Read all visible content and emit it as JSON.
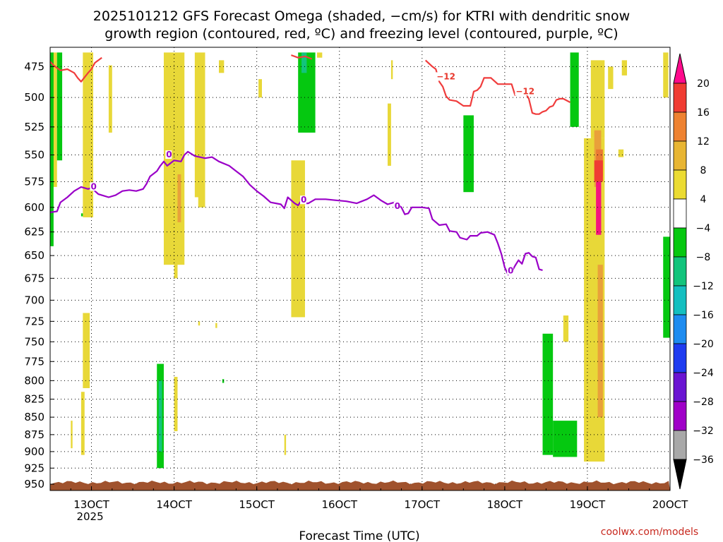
{
  "chart_data": {
    "type": "heatmap",
    "title": "2025101212 GFS Forecast Omega (shaded, −cm/s) for KTRI with dendritic snow",
    "subtitle": "growth region (contoured, red, ºC) and freezing level (contoured, purple, ºC)",
    "xlabel": "Forecast Time (UTC)",
    "ylabel": "",
    "credit": "coolwx.com/models",
    "x_axis": {
      "ticks": [
        {
          "value": 0,
          "label": "13OCT",
          "sub": "2025"
        },
        {
          "value": 24,
          "label": "14OCT",
          "sub": ""
        },
        {
          "value": 48,
          "label": "15OCT",
          "sub": ""
        },
        {
          "value": 72,
          "label": "16OCT",
          "sub": ""
        },
        {
          "value": 96,
          "label": "17OCT",
          "sub": ""
        },
        {
          "value": 120,
          "label": "18OCT",
          "sub": ""
        },
        {
          "value": 144,
          "label": "19OCT",
          "sub": ""
        },
        {
          "value": 168,
          "label": "20OCT",
          "sub": ""
        }
      ],
      "range_hours": [
        -12,
        168
      ],
      "units": "hours from 13OCT 00Z"
    },
    "y_axis": {
      "ticks": [
        475,
        500,
        525,
        550,
        575,
        600,
        625,
        650,
        675,
        700,
        725,
        750,
        775,
        800,
        825,
        850,
        875,
        900,
        925,
        950
      ],
      "range_hpa": [
        460,
        960
      ],
      "scale": "log-pressure, inverted"
    },
    "colorbar": {
      "labels": [
        "20",
        "16",
        "12",
        "8",
        "4",
        "−4",
        "−8",
        "−12",
        "−16",
        "−20",
        "−24",
        "−28",
        "−32",
        "−36"
      ],
      "colors": [
        "#ff0a8c",
        "#f03c32",
        "#ee8231",
        "#e8b533",
        "#ebdb32",
        "#ffffff",
        "#05c810",
        "#12c47c",
        "#14bfc0",
        "#1e8cf0",
        "#1e3cf0",
        "#6a14d2",
        "#a000c8",
        "#a8a8a8"
      ],
      "top_color": "#ff0a8c",
      "bottom_color": "#000000"
    },
    "freezing_level": {
      "label": "0",
      "color": "#9a00c8",
      "points": [
        [
          -12,
          605
        ],
        [
          -10,
          604
        ],
        [
          -9,
          595
        ],
        [
          -7,
          590
        ],
        [
          -5,
          584
        ],
        [
          -3,
          580
        ],
        [
          -1,
          582
        ],
        [
          0,
          581
        ],
        [
          1,
          584
        ],
        [
          2,
          587
        ],
        [
          3,
          588
        ],
        [
          5,
          590
        ],
        [
          7,
          588
        ],
        [
          9,
          584
        ],
        [
          11,
          583
        ],
        [
          13,
          584
        ],
        [
          15,
          582
        ],
        [
          16,
          577
        ],
        [
          17,
          570
        ],
        [
          19,
          565
        ],
        [
          20,
          560
        ],
        [
          21,
          556
        ],
        [
          22,
          560
        ],
        [
          24,
          555
        ],
        [
          26,
          556
        ],
        [
          27,
          550
        ],
        [
          28,
          547
        ],
        [
          30,
          551
        ],
        [
          33,
          553
        ],
        [
          35,
          552
        ],
        [
          37,
          556
        ],
        [
          40,
          560
        ],
        [
          42,
          565
        ],
        [
          44,
          570
        ],
        [
          46,
          578
        ],
        [
          48,
          584
        ],
        [
          50,
          589
        ],
        [
          52,
          595
        ],
        [
          55,
          597
        ],
        [
          56,
          601
        ],
        [
          57,
          590
        ],
        [
          58,
          593
        ],
        [
          59,
          596
        ],
        [
          60,
          598
        ],
        [
          61,
          593
        ],
        [
          62,
          596
        ],
        [
          63,
          596
        ],
        [
          65,
          592
        ],
        [
          68,
          592
        ],
        [
          71,
          593
        ],
        [
          74,
          594
        ],
        [
          77,
          596
        ],
        [
          80,
          592
        ],
        [
          82,
          588
        ],
        [
          84,
          593
        ],
        [
          86,
          597
        ],
        [
          88,
          595
        ],
        [
          90,
          600
        ],
        [
          91,
          607
        ],
        [
          92,
          606
        ],
        [
          93,
          600
        ],
        [
          96,
          600
        ],
        [
          98,
          601
        ],
        [
          99,
          612
        ],
        [
          101,
          618
        ],
        [
          103,
          617
        ],
        [
          104,
          624
        ],
        [
          106,
          625
        ],
        [
          107,
          631
        ],
        [
          109,
          633
        ],
        [
          110,
          629
        ],
        [
          112,
          629
        ],
        [
          113,
          626
        ],
        [
          115,
          625
        ],
        [
          117,
          628
        ],
        [
          118,
          637
        ],
        [
          119,
          648
        ],
        [
          120,
          663
        ],
        [
          121,
          671
        ],
        [
          122,
          668
        ],
        [
          123,
          661
        ],
        [
          124,
          655
        ],
        [
          125,
          659
        ],
        [
          126,
          648
        ],
        [
          127,
          647
        ],
        [
          128,
          651
        ],
        [
          129,
          652
        ],
        [
          130,
          665
        ],
        [
          131,
          666
        ]
      ]
    },
    "dgz_upper": {
      "label": "−12",
      "color": "#f03c3c",
      "points": [
        [
          -12,
          471
        ],
        [
          -11,
          474
        ],
        [
          -9,
          478
        ],
        [
          -7,
          477
        ],
        [
          -5,
          480
        ],
        [
          -4,
          484
        ],
        [
          -3,
          487
        ],
        [
          -1,
          480
        ],
        [
          0,
          477
        ],
        [
          1,
          472
        ],
        [
          2,
          470
        ],
        [
          3,
          468
        ]
      ]
    },
    "dgz_right": {
      "label": "−12",
      "color": "#f03c3c",
      "points": [
        [
          97,
          470
        ],
        [
          99,
          475
        ],
        [
          100,
          477
        ],
        [
          101,
          487
        ],
        [
          102,
          491
        ],
        [
          103,
          499
        ],
        [
          104,
          502
        ],
        [
          106,
          503
        ],
        [
          108,
          507
        ],
        [
          110,
          507
        ],
        [
          111,
          495
        ],
        [
          112,
          494
        ],
        [
          113,
          491
        ],
        [
          114,
          484
        ],
        [
          116,
          484
        ],
        [
          118,
          489
        ],
        [
          120,
          489
        ],
        [
          122,
          489
        ],
        [
          123,
          498
        ],
        [
          124,
          497
        ],
        [
          125,
          497
        ],
        [
          126,
          496
        ],
        [
          127,
          501
        ],
        [
          128,
          513
        ],
        [
          129,
          514
        ],
        [
          130,
          514
        ],
        [
          131,
          512
        ],
        [
          132,
          511
        ],
        [
          133,
          508
        ],
        [
          134,
          507
        ],
        [
          135,
          502
        ],
        [
          136,
          501
        ],
        [
          137,
          501
        ],
        [
          139,
          504
        ]
      ]
    },
    "dgz_top_fragment": {
      "color": "#f03c3c",
      "points": [
        [
          58,
          466
        ],
        [
          60,
          468
        ],
        [
          62,
          467
        ],
        [
          64,
          469
        ]
      ]
    },
    "shading": {
      "yellow": [
        {
          "x0": -11.5,
          "x1": -10,
          "p0": 464,
          "p1": 580
        },
        {
          "x0": -2.5,
          "x1": 0.5,
          "p0": 464,
          "p1": 610
        },
        {
          "x0": 5,
          "x1": 6,
          "p0": 474,
          "p1": 530
        },
        {
          "x0": 21,
          "x1": 27,
          "p0": 464,
          "p1": 660
        },
        {
          "x0": 24,
          "x1": 25,
          "p0": 640,
          "p1": 675
        },
        {
          "x0": 30,
          "x1": 33,
          "p0": 464,
          "p1": 590
        },
        {
          "x0": 31,
          "x1": 33,
          "p0": 540,
          "p1": 600
        },
        {
          "x0": 37,
          "x1": 38.5,
          "p0": 470,
          "p1": 480
        },
        {
          "x0": 48.5,
          "x1": 49.5,
          "p0": 485,
          "p1": 500
        },
        {
          "x0": 58,
          "x1": 62,
          "p0": 555,
          "p1": 720
        },
        {
          "x0": 65.5,
          "x1": 67,
          "p0": 464,
          "p1": 468
        },
        {
          "x0": 86,
          "x1": 87,
          "p0": 505,
          "p1": 560
        },
        {
          "x0": 87,
          "x1": 87.5,
          "p0": 470,
          "p1": 485
        },
        {
          "x0": -2.5,
          "x1": -0.5,
          "p0": 715,
          "p1": 810
        },
        {
          "x0": -3,
          "x1": -2,
          "p0": 815,
          "p1": 905
        },
        {
          "x0": -6,
          "x1": -5.5,
          "p0": 855,
          "p1": 895
        },
        {
          "x0": -2,
          "x1": -1.5,
          "p0": 738,
          "p1": 748
        },
        {
          "x0": 24,
          "x1": 25,
          "p0": 795,
          "p1": 870
        },
        {
          "x0": 31,
          "x1": 31.5,
          "p0": 725,
          "p1": 730
        },
        {
          "x0": 36,
          "x1": 36.5,
          "p0": 727,
          "p1": 733
        },
        {
          "x0": 56,
          "x1": 56.5,
          "p0": 875,
          "p1": 905
        },
        {
          "x0": 137,
          "x1": 138.5,
          "p0": 718,
          "p1": 750
        },
        {
          "x0": 143,
          "x1": 149,
          "p0": 535,
          "p1": 915
        },
        {
          "x0": 145,
          "x1": 149,
          "p0": 470,
          "p1": 535
        },
        {
          "x0": 150,
          "x1": 151.5,
          "p0": 475,
          "p1": 493
        },
        {
          "x0": 154,
          "x1": 155.5,
          "p0": 470,
          "p1": 482
        },
        {
          "x0": 153,
          "x1": 154.5,
          "p0": 545,
          "p1": 552
        },
        {
          "x0": 166,
          "x1": 167.5,
          "p0": 464,
          "p1": 500
        }
      ],
      "orange": [
        {
          "x0": 25,
          "x1": 26,
          "p0": 568,
          "p1": 615
        },
        {
          "x0": 146,
          "x1": 148,
          "p0": 528,
          "p1": 580
        },
        {
          "x0": 147,
          "x1": 148.5,
          "p0": 660,
          "p1": 850
        }
      ],
      "darkorange": [
        {
          "x0": 146.5,
          "x1": 148.5,
          "p0": 545,
          "p1": 570
        }
      ],
      "red": [
        {
          "x0": 146,
          "x1": 148.5,
          "p0": 555,
          "p1": 575
        }
      ],
      "magenta": [
        {
          "x0": 146.5,
          "x1": 148,
          "p0": 575,
          "p1": 628
        }
      ],
      "green": [
        {
          "x0": -12,
          "x1": -11,
          "p0": 464,
          "p1": 640
        },
        {
          "x0": -10,
          "x1": -8.5,
          "p0": 464,
          "p1": 555
        },
        {
          "x0": -3,
          "x1": -2.5,
          "p0": 606,
          "p1": 609
        },
        {
          "x0": 19,
          "x1": 21,
          "p0": 778,
          "p1": 925
        },
        {
          "x0": 38,
          "x1": 38.5,
          "p0": 798,
          "p1": 803
        },
        {
          "x0": 60,
          "x1": 65,
          "p0": 464,
          "p1": 530
        },
        {
          "x0": 108,
          "x1": 111,
          "p0": 515,
          "p1": 585
        },
        {
          "x0": 131,
          "x1": 134,
          "p0": 740,
          "p1": 905
        },
        {
          "x0": 134,
          "x1": 141,
          "p0": 855,
          "p1": 908
        },
        {
          "x0": 139,
          "x1": 141.5,
          "p0": 464,
          "p1": 525
        },
        {
          "x0": 166,
          "x1": 168,
          "p0": 630,
          "p1": 745
        }
      ],
      "teal": [
        {
          "x0": 61,
          "x1": 62.5,
          "p0": 464,
          "p1": 480
        },
        {
          "x0": 19.5,
          "x1": 20.5,
          "p0": 800,
          "p1": 900
        }
      ]
    },
    "terrain": {
      "color": "#a0522d",
      "top_hpa": 945
    }
  }
}
